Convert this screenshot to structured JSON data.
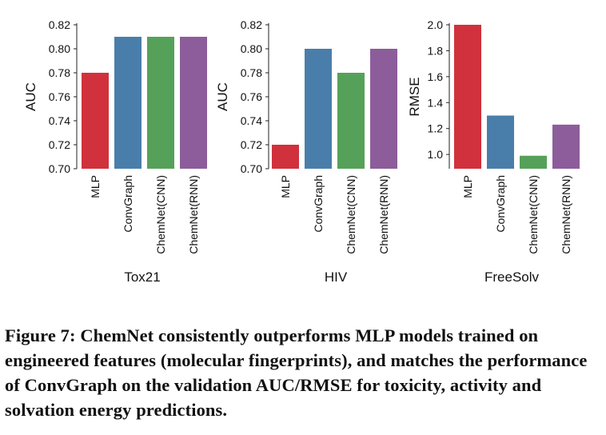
{
  "chart_data": [
    {
      "type": "bar",
      "xlabel": "Tox21",
      "ylabel": "AUC",
      "ylim": [
        0.7,
        0.82
      ],
      "yticks": [
        "0.70",
        "0.72",
        "0.74",
        "0.76",
        "0.78",
        "0.80",
        "0.82"
      ],
      "categories": [
        "MLP",
        "ConvGraph",
        "ChemNet(CNN)",
        "ChemNet(RNN)"
      ],
      "values": [
        0.78,
        0.81,
        0.81,
        0.81
      ],
      "colors": [
        "#d1313c",
        "#4a7eaa",
        "#56a159",
        "#8c5d9a"
      ]
    },
    {
      "type": "bar",
      "xlabel": "HIV",
      "ylabel": "AUC",
      "ylim": [
        0.7,
        0.82
      ],
      "yticks": [
        "0.70",
        "0.72",
        "0.74",
        "0.76",
        "0.78",
        "0.80",
        "0.82"
      ],
      "categories": [
        "MLP",
        "ConvGraph",
        "ChemNet(CNN)",
        "ChemNet(RNN)"
      ],
      "values": [
        0.72,
        0.8,
        0.78,
        0.8
      ],
      "colors": [
        "#d1313c",
        "#4a7eaa",
        "#56a159",
        "#8c5d9a"
      ]
    },
    {
      "type": "bar",
      "xlabel": "FreeSolv",
      "ylabel": "RMSE",
      "ylim": [
        0.89,
        2.0
      ],
      "yticks": [
        "1.0",
        "1.2",
        "1.4",
        "1.6",
        "1.8",
        "2.0"
      ],
      "categories": [
        "MLP",
        "ConvGraph",
        "ChemNet(CNN)",
        "ChemNet(RNN)"
      ],
      "values": [
        2.0,
        1.3,
        0.99,
        1.23
      ],
      "colors": [
        "#d1313c",
        "#4a7eaa",
        "#56a159",
        "#8c5d9a"
      ]
    }
  ],
  "caption": {
    "label": "Figure 7:",
    "text": "ChemNet consistently outperforms MLP models trained on engineered features (molecular fingerprints), and matches the performance of ConvGraph on the validation AUC/RMSE for toxicity, activity and solvation energy predictions."
  }
}
